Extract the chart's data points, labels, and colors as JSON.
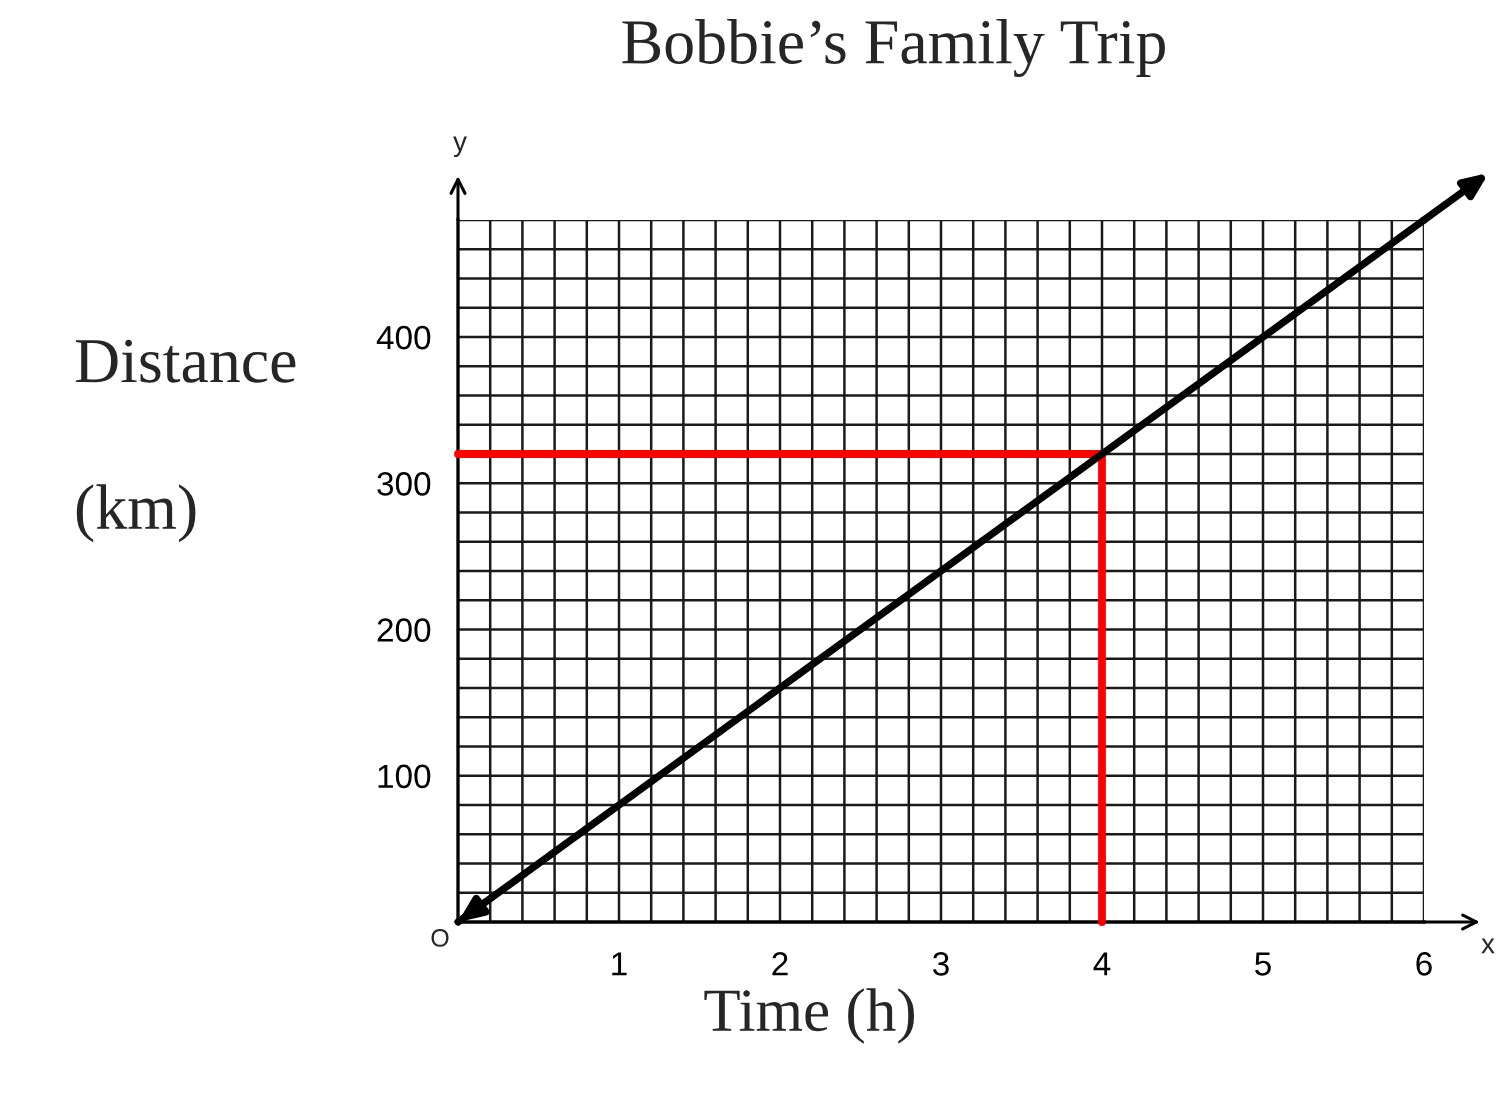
{
  "chart_data": {
    "type": "line",
    "title": "Bobbie’s Family Trip",
    "xlabel": "Time (h)",
    "ylabel": "Distance\n(km)",
    "series": [
      {
        "color": "#000000",
        "x": [
          0,
          6
        ],
        "values": [
          0,
          480
        ]
      },
      {
        "color": "#ff0000",
        "x": [
          0,
          4,
          4
        ],
        "values": [
          320,
          320,
          0
        ]
      }
    ],
    "xlim": [
      0,
      6
    ],
    "ylim": [
      0,
      480
    ],
    "xticks": [
      {
        "value": 0.2,
        "label": null
      },
      {
        "value": 0.4,
        "label": null
      },
      {
        "value": 0.6,
        "label": null
      },
      {
        "value": 0.8,
        "label": null
      },
      1,
      {
        "value": 1.2,
        "label": null
      },
      {
        "value": 1.4,
        "label": null
      },
      {
        "value": 1.6,
        "label": null
      },
      {
        "value": 1.8,
        "label": null
      },
      2,
      {
        "value": 2.2,
        "label": null
      },
      {
        "value": 2.4,
        "label": null
      },
      {
        "value": 2.6,
        "label": null
      },
      {
        "value": 2.8,
        "label": null
      },
      3,
      {
        "value": 3.2,
        "label": null
      },
      {
        "value": 3.4,
        "label": null
      },
      {
        "value": 3.6,
        "label": null
      },
      {
        "value": 3.8,
        "label": null
      },
      4,
      {
        "value": 4.2,
        "label": null
      },
      {
        "value": 4.4,
        "label": null
      },
      {
        "value": 4.6,
        "label": null
      },
      {
        "value": 4.8,
        "label": null
      },
      5,
      {
        "value": 5.2,
        "label": null
      },
      {
        "value": 5.4,
        "label": null
      },
      {
        "value": 5.6,
        "label": null
      },
      {
        "value": 5.8,
        "label": null
      },
      6
    ],
    "yticks": [
      {
        "value": 20,
        "label": null
      },
      {
        "value": 40,
        "label": null
      },
      {
        "value": 60,
        "label": null
      },
      {
        "value": 80,
        "label": null
      },
      100,
      {
        "value": 120,
        "label": null
      },
      {
        "value": 140,
        "label": null
      },
      {
        "value": 160,
        "label": null
      },
      {
        "value": 180,
        "label": null
      },
      200,
      {
        "value": 220,
        "label": null
      },
      {
        "value": 240,
        "label": null
      },
      {
        "value": 260,
        "label": null
      },
      {
        "value": 280,
        "label": null
      },
      300,
      {
        "value": 320,
        "label": null
      },
      {
        "value": 340,
        "label": null
      },
      {
        "value": 360,
        "label": null
      },
      {
        "value": 380,
        "label": null
      },
      400,
      {
        "value": 420,
        "label": null
      },
      {
        "value": 440,
        "label": null
      },
      {
        "value": 460,
        "label": null
      },
      {
        "value": 480,
        "label": null
      }
    ],
    "grid": true,
    "annotations": [
      "y",
      "x",
      {
        "text": "O",
        "x": 0,
        "y": 0
      }
    ]
  }
}
